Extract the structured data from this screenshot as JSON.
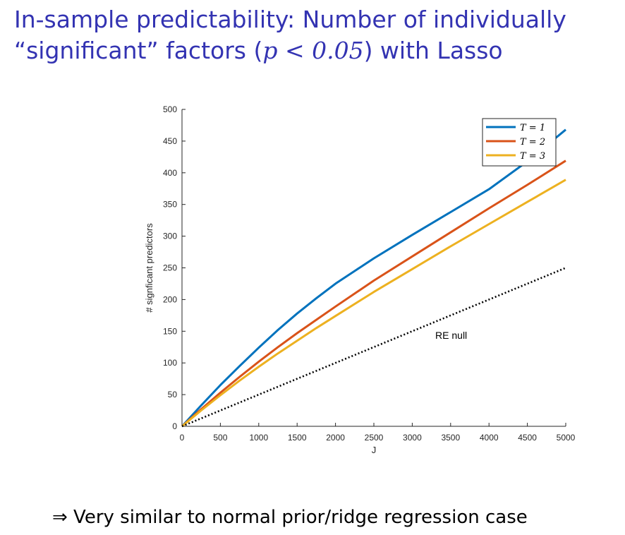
{
  "slide": {
    "title_line1": "In-sample predictability: Number of individually",
    "title_line2_pre": "“significant” factors (",
    "title_line2_math": "p < 0.05",
    "title_line2_post": ") with Lasso",
    "footer": "⇒ Very similar to normal prior/ridge regression case"
  },
  "chart_data": {
    "type": "line",
    "title": "",
    "xlabel": "J",
    "ylabel": "# signficant predictors",
    "xlim": [
      0,
      5000
    ],
    "ylim": [
      0,
      500
    ],
    "xticks": [
      0,
      500,
      1000,
      1500,
      2000,
      2500,
      3000,
      3500,
      4000,
      4500,
      5000
    ],
    "yticks": [
      0,
      50,
      100,
      150,
      200,
      250,
      300,
      350,
      400,
      450,
      500
    ],
    "grid": false,
    "legend_position": "top-right",
    "series": [
      {
        "name": "T = 1",
        "color": "#0072bd",
        "style": "solid",
        "x": [
          0,
          250,
          500,
          750,
          1000,
          1250,
          1500,
          1750,
          2000,
          2500,
          3000,
          3500,
          4000,
          4500,
          5000
        ],
        "y": [
          0,
          33,
          65,
          95,
          124,
          152,
          178,
          202,
          225,
          265,
          302,
          338,
          374,
          418,
          468
        ]
      },
      {
        "name": "T = 2",
        "color": "#d95319",
        "style": "solid",
        "x": [
          0,
          250,
          500,
          750,
          1000,
          1250,
          1500,
          1750,
          2000,
          2500,
          3000,
          3500,
          4000,
          4500,
          5000
        ],
        "y": [
          0,
          27,
          53,
          78,
          102,
          125,
          147,
          168,
          189,
          230,
          268,
          306,
          344,
          381,
          419
        ]
      },
      {
        "name": "T = 3",
        "color": "#edb120",
        "style": "solid",
        "x": [
          0,
          250,
          500,
          750,
          1000,
          1250,
          1500,
          1750,
          2000,
          2500,
          3000,
          3500,
          4000,
          4500,
          5000
        ],
        "y": [
          0,
          25,
          49,
          72,
          94,
          115,
          135,
          155,
          174,
          212,
          248,
          284,
          319,
          354,
          389
        ]
      },
      {
        "name": "",
        "color": "#000000",
        "style": "dotted",
        "x": [
          0,
          5000
        ],
        "y": [
          0,
          250
        ]
      }
    ],
    "annotations": [
      {
        "text": "RE null",
        "x": 3300,
        "y": 138
      }
    ]
  }
}
